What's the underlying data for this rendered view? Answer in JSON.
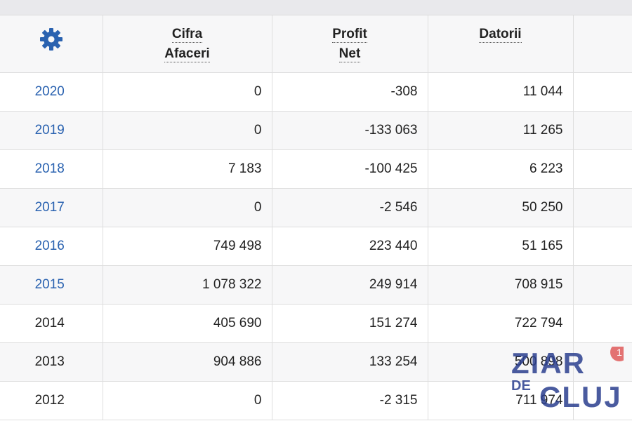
{
  "table": {
    "headers": {
      "settings_icon": "gear-icon",
      "turnover": [
        "Cifra",
        "Afaceri"
      ],
      "net_profit": [
        "Profit",
        "Net"
      ],
      "debts": [
        "Datorii"
      ]
    },
    "rows": [
      {
        "year": "2020",
        "turnover": "0",
        "net_profit": "-308",
        "debts": "11 044",
        "linked": true
      },
      {
        "year": "2019",
        "turnover": "0",
        "net_profit": "-133 063",
        "debts": "11 265",
        "linked": true
      },
      {
        "year": "2018",
        "turnover": "7 183",
        "net_profit": "-100 425",
        "debts": "6 223",
        "linked": true
      },
      {
        "year": "2017",
        "turnover": "0",
        "net_profit": "-2 546",
        "debts": "50 250",
        "linked": true
      },
      {
        "year": "2016",
        "turnover": "749 498",
        "net_profit": "223 440",
        "debts": "51 165",
        "linked": true
      },
      {
        "year": "2015",
        "turnover": "1 078 322",
        "net_profit": "249 914",
        "debts": "708 915",
        "linked": true
      },
      {
        "year": "2014",
        "turnover": "405 690",
        "net_profit": "151 274",
        "debts": "722 794",
        "linked": false
      },
      {
        "year": "2013",
        "turnover": "904 886",
        "net_profit": "133 254",
        "debts": "500 898",
        "linked": false
      },
      {
        "year": "2012",
        "turnover": "0",
        "net_profit": "-2 315",
        "debts": "711 974",
        "linked": false
      }
    ]
  },
  "watermark": {
    "text_top": "ZIAR",
    "text_de": "DE",
    "text_bottom": "CLUJ",
    "badge_count": "1",
    "color": "#2b3f8f",
    "badge_color": "#e05b5b"
  },
  "colors": {
    "link": "#2a62b0",
    "gear": "#2a62b0"
  }
}
